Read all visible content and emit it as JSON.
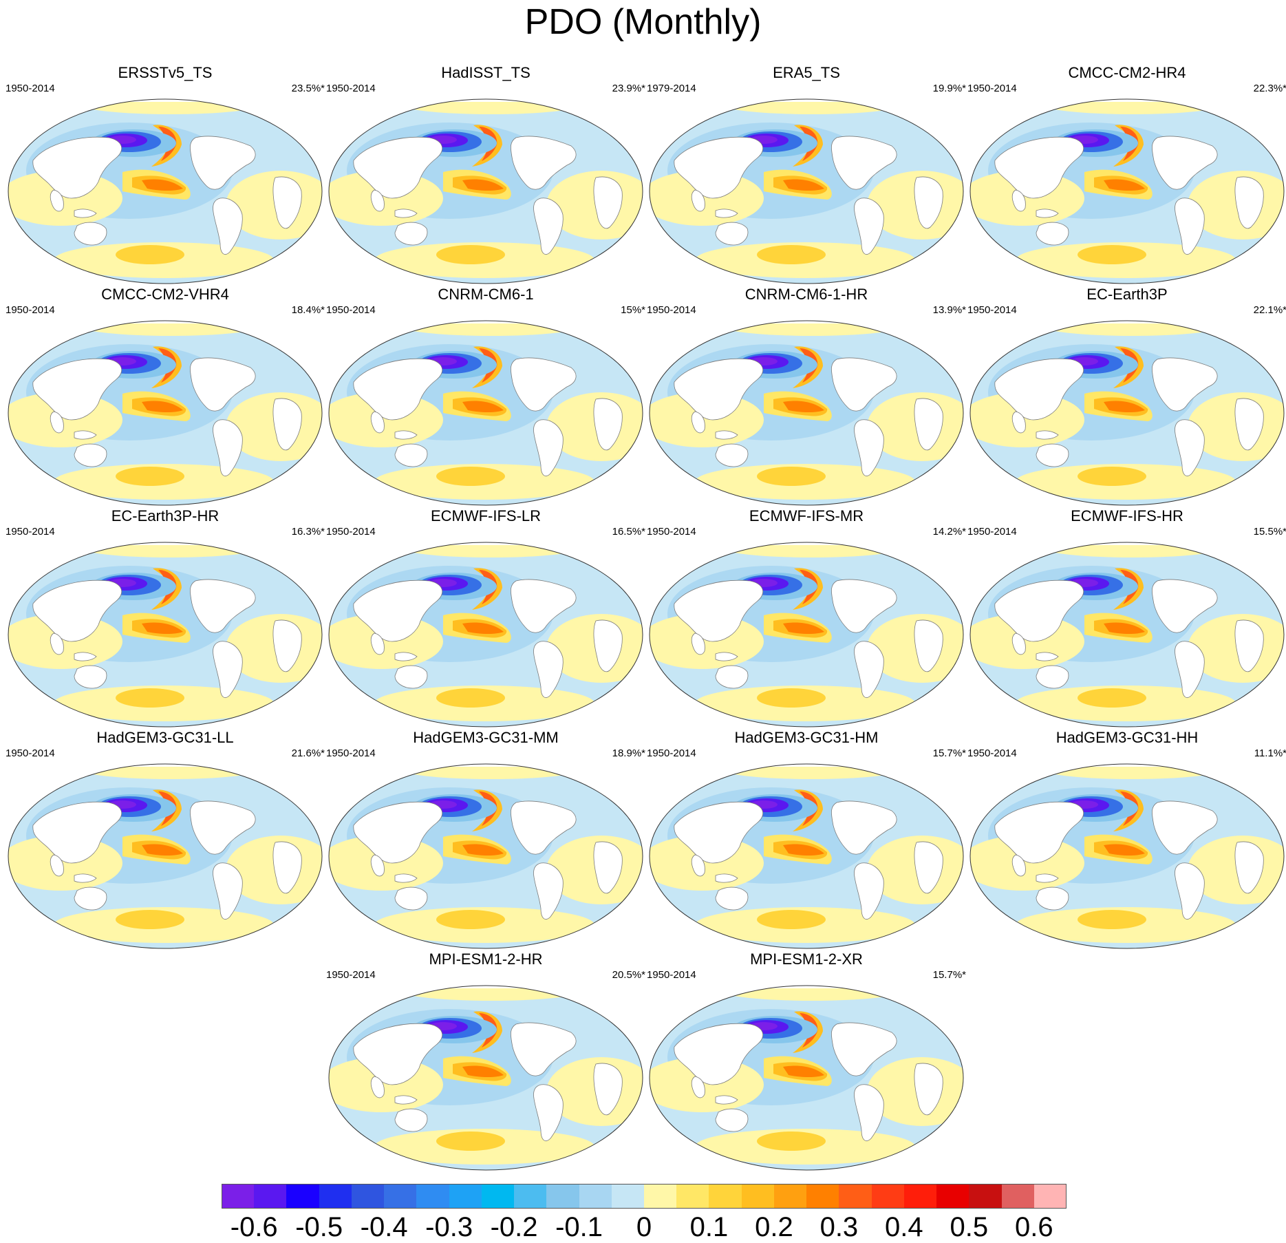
{
  "figure": {
    "title": "PDO (Monthly)"
  },
  "panels": [
    {
      "name": "ERSSTv5_TS",
      "period": "1950-2014",
      "variance": "23.5%*"
    },
    {
      "name": "HadISST_TS",
      "period": "1950-2014",
      "variance": "23.9%*"
    },
    {
      "name": "ERA5_TS",
      "period": "1979-2014",
      "variance": "19.9%*"
    },
    {
      "name": "CMCC-CM2-HR4",
      "period": "1950-2014",
      "variance": "22.3%*"
    },
    {
      "name": "CMCC-CM2-VHR4",
      "period": "1950-2014",
      "variance": "18.4%*"
    },
    {
      "name": "CNRM-CM6-1",
      "period": "1950-2014",
      "variance": "15%*"
    },
    {
      "name": "CNRM-CM6-1-HR",
      "period": "1950-2014",
      "variance": "13.9%*"
    },
    {
      "name": "EC-Earth3P",
      "period": "1950-2014",
      "variance": "22.1%*"
    },
    {
      "name": "EC-Earth3P-HR",
      "period": "1950-2014",
      "variance": "16.3%*"
    },
    {
      "name": "ECMWF-IFS-LR",
      "period": "1950-2014",
      "variance": "16.5%*"
    },
    {
      "name": "ECMWF-IFS-MR",
      "period": "1950-2014",
      "variance": "14.2%*"
    },
    {
      "name": "ECMWF-IFS-HR",
      "period": "1950-2014",
      "variance": "15.5%*"
    },
    {
      "name": "HadGEM3-GC31-LL",
      "period": "1950-2014",
      "variance": "21.6%*"
    },
    {
      "name": "HadGEM3-GC31-MM",
      "period": "1950-2014",
      "variance": "18.9%*"
    },
    {
      "name": "HadGEM3-GC31-HM",
      "period": "1950-2014",
      "variance": "15.7%*"
    },
    {
      "name": "HadGEM3-GC31-HH",
      "period": "1950-2014",
      "variance": "11.1%*"
    },
    {
      "name": "MPI-ESM1-2-HR",
      "period": "1950-2014",
      "variance": "20.5%*"
    },
    {
      "name": "MPI-ESM1-2-XR",
      "period": "1950-2014",
      "variance": "15.7%*"
    }
  ],
  "colorbar": {
    "colors": [
      "#7b1fe8",
      "#5a18f0",
      "#1a00ff",
      "#1f2ff0",
      "#2f55e0",
      "#3670e6",
      "#2f8cf2",
      "#1ea2f5",
      "#00b8f0",
      "#4cbcf0",
      "#86c6ec",
      "#a8d6f2",
      "#c6e6f5",
      "#fff7a8",
      "#ffe766",
      "#ffd43a",
      "#ffbe20",
      "#ffa010",
      "#ff8000",
      "#ff5e16",
      "#ff3c14",
      "#ff1e0a",
      "#e80000",
      "#c81010",
      "#e06060",
      "#ffb4b4"
    ],
    "tick_labels": [
      "-0.6",
      "-0.5",
      "-0.4",
      "-0.3",
      "-0.2",
      "-0.1",
      "0",
      "0.1",
      "0.2",
      "0.3",
      "0.4",
      "0.5",
      "0.6"
    ]
  }
}
